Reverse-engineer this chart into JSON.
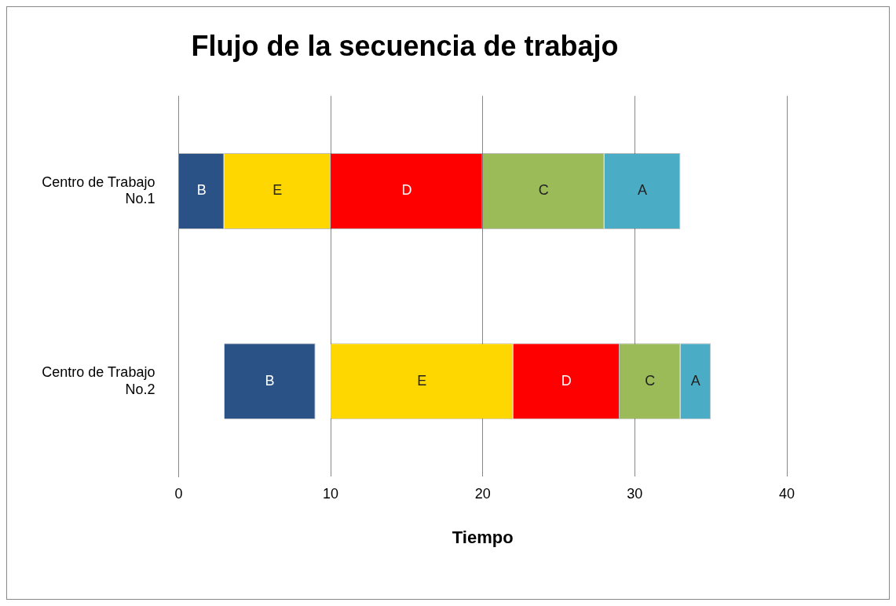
{
  "chart_data": {
    "type": "bar",
    "orientation": "horizontal",
    "title": "Flujo de la secuencia de trabajo",
    "xlabel": "Tiempo",
    "categories": [
      "Centro de Trabajo No.1",
      "Centro de Trabajo No.2"
    ],
    "series": [
      {
        "name": "B",
        "color": "#2a5286",
        "values": [
          3,
          6
        ],
        "base": [
          0,
          3
        ]
      },
      {
        "name": "E",
        "color": "#ffd700",
        "values": [
          7,
          12
        ],
        "base": [
          3,
          10
        ]
      },
      {
        "name": "D",
        "color": "#ff0000",
        "values": [
          10,
          7
        ],
        "base": [
          10,
          22
        ]
      },
      {
        "name": "C",
        "color": "#9bbb59",
        "values": [
          8,
          4
        ],
        "base": [
          20,
          29
        ]
      },
      {
        "name": "A",
        "color": "#4bacc6",
        "values": [
          5,
          2
        ],
        "base": [
          28,
          33
        ]
      }
    ],
    "xlim": [
      0,
      40
    ],
    "xticks": [
      0,
      10,
      20,
      30,
      40
    ],
    "grid": "x",
    "legend": false
  }
}
